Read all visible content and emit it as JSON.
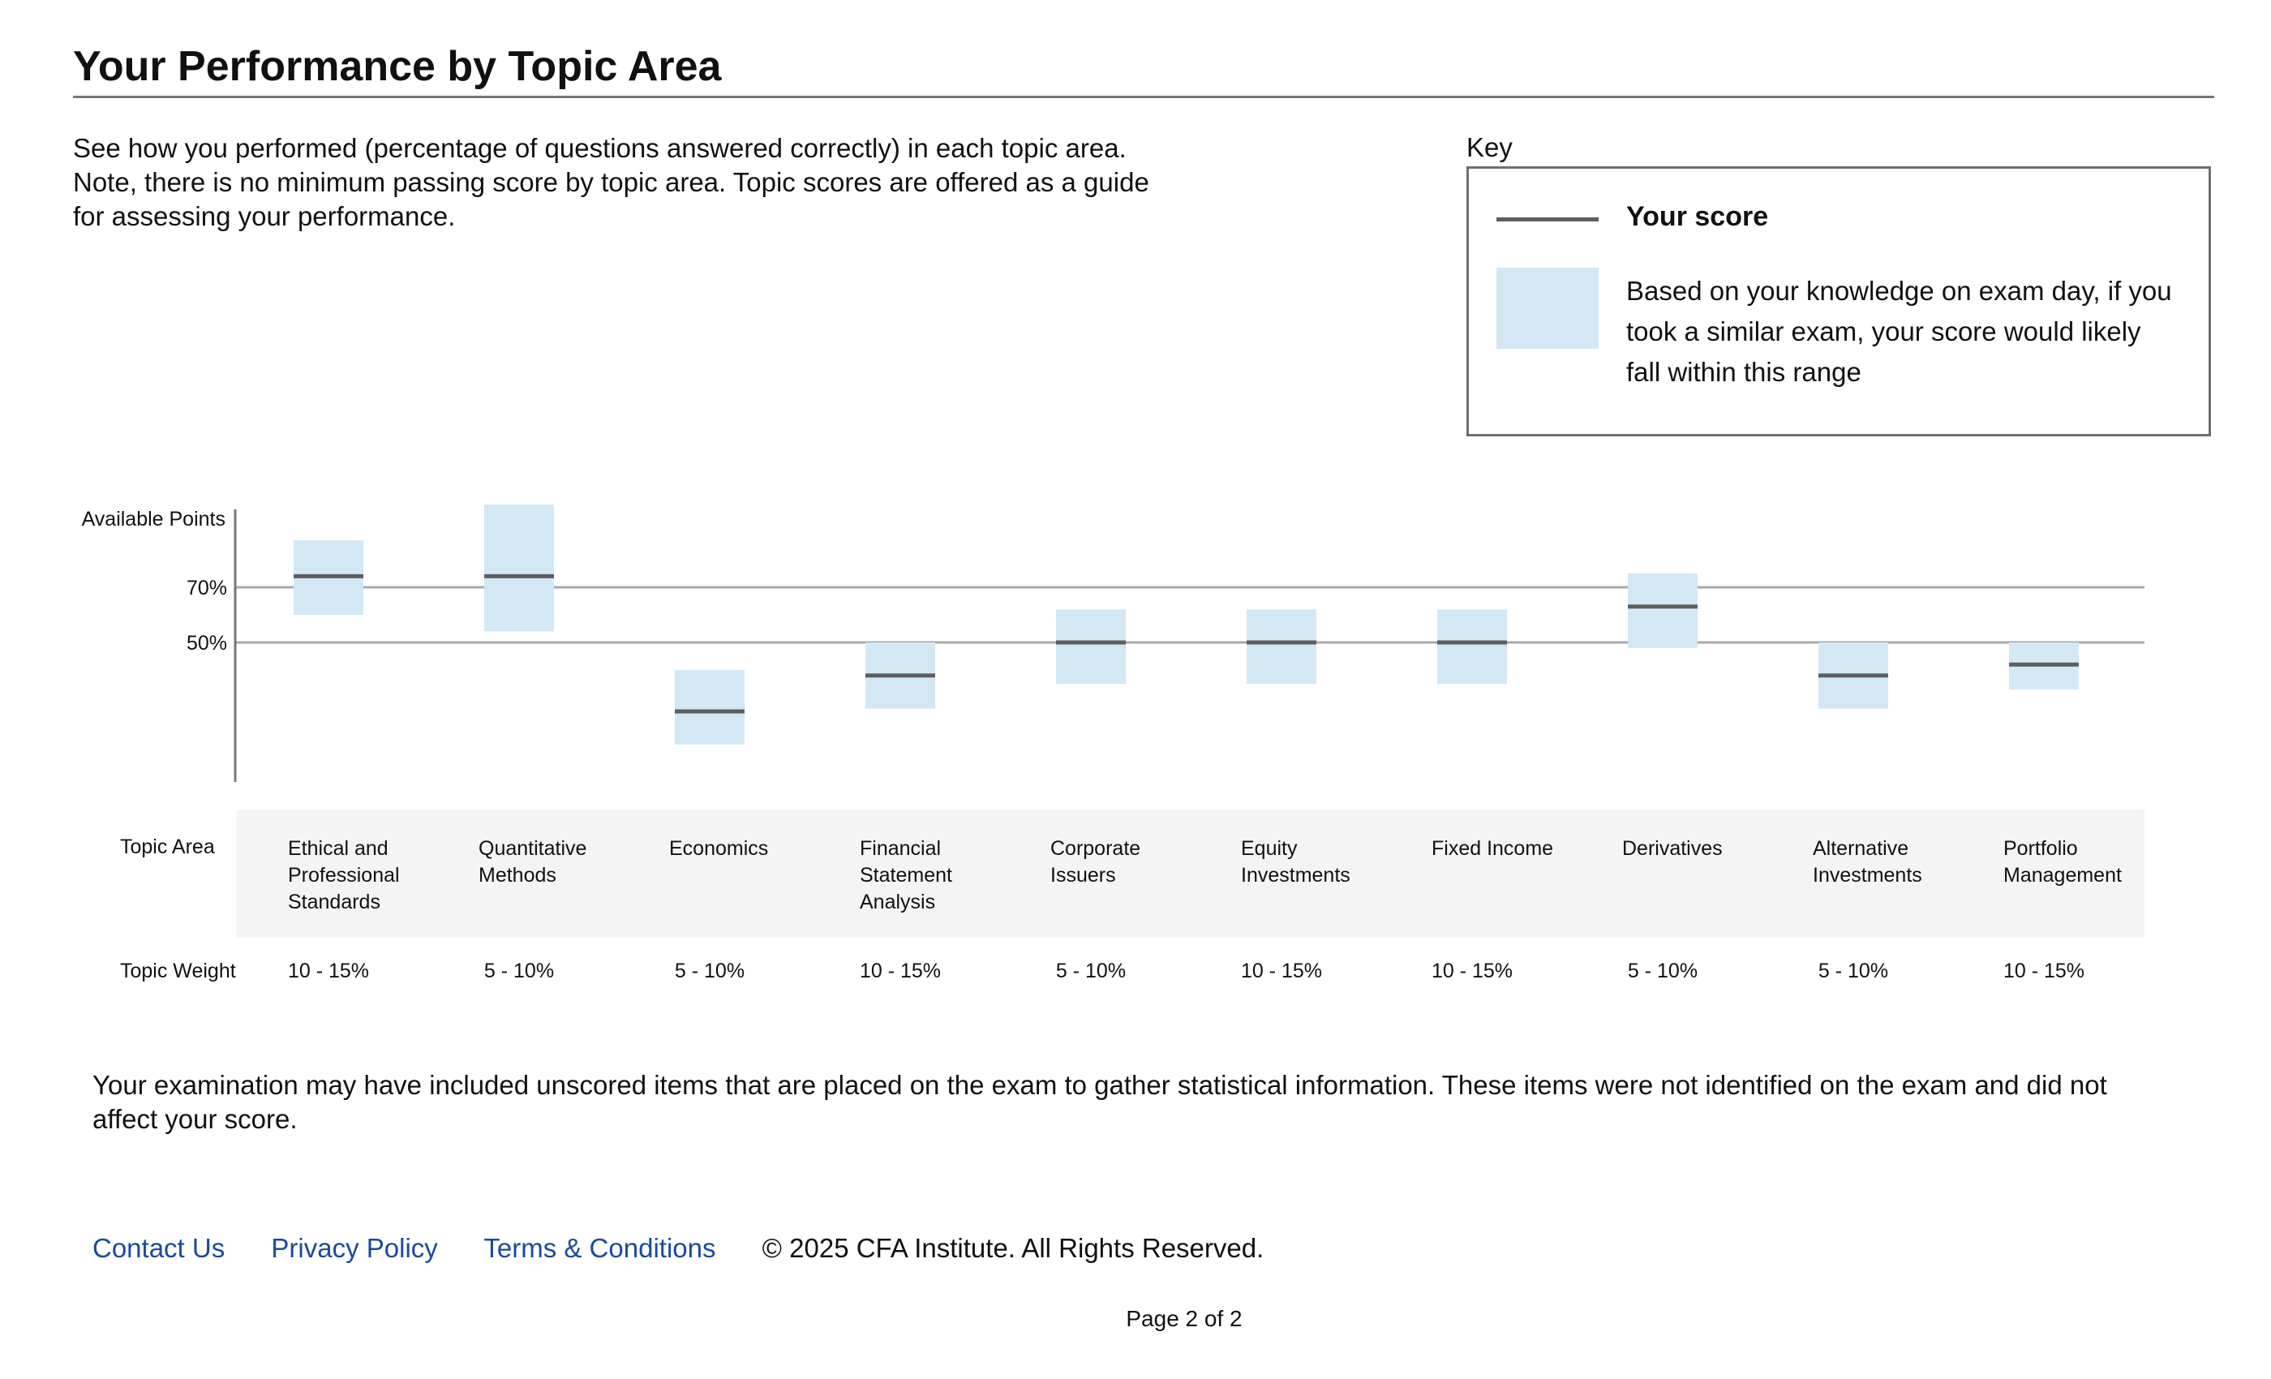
{
  "page": {
    "title": "Your Performance by Topic Area",
    "intro": "See how you performed (percentage of questions answered correctly) in each topic area. Note, there is no minimum passing score by topic area. Topic scores are offered as a guide for assessing your performance."
  },
  "key": {
    "label": "Key",
    "score_label": "Your score",
    "range_label": "Based on your knowledge on exam day, if you took a similar exam, your score would likely fall within this range"
  },
  "colors": {
    "score_line": "#5e5e5e",
    "range_band": "#d2e8f5",
    "gridline": "#a9a9a9",
    "link": "#1b49a0",
    "table_band": "#f4f4f4"
  },
  "table": {
    "topic_area_label": "Topic Area",
    "topic_weight_label": "Topic Weight"
  },
  "chart_data": {
    "type": "range",
    "ylabel": "Available Points",
    "reference_lines": [
      {
        "value": 70,
        "label": "70%"
      },
      {
        "value": 50,
        "label": "50%"
      }
    ],
    "ylim": [
      0,
      100
    ],
    "grid": false,
    "categories": [
      "Ethical and Professional Standards",
      "Quantitative Methods",
      "Economics",
      "Financial Statement Analysis",
      "Corporate Issuers",
      "Equity Investments",
      "Fixed Income",
      "Derivatives",
      "Alternative Investments",
      "Portfolio Management"
    ],
    "topic_lines": [
      [
        "Ethical and",
        "Professional",
        "Standards"
      ],
      [
        "Quantitative",
        "Methods"
      ],
      [
        "Economics"
      ],
      [
        "Financial",
        "Statement",
        "Analysis"
      ],
      [
        "Corporate",
        "Issuers"
      ],
      [
        "Equity",
        "Investments"
      ],
      [
        "Fixed Income"
      ],
      [
        "Derivatives"
      ],
      [
        "Alternative",
        "Investments"
      ],
      [
        "Portfolio",
        "Management"
      ]
    ],
    "weights": [
      "10 - 15%",
      "5 - 10%",
      "5 - 10%",
      "10 - 15%",
      "5 - 10%",
      "10 - 15%",
      "10 - 15%",
      "5 - 10%",
      "5 - 10%",
      "10 - 15%"
    ],
    "series": [
      {
        "name": "Your score",
        "values": [
          74,
          74,
          25,
          38,
          50,
          50,
          50,
          63,
          38,
          42
        ]
      },
      {
        "name": "Range",
        "low": [
          60,
          54,
          13,
          26,
          35,
          35,
          35,
          48,
          26,
          33
        ],
        "high": [
          87,
          100,
          40,
          50,
          62,
          62,
          62,
          75,
          50,
          50
        ]
      }
    ]
  },
  "disclaimer": "Your examination may have included unscored items that are placed on the exam to gather statistical information. These items were not identified on the exam and did not affect your score.",
  "footer": {
    "links": [
      "Contact Us",
      "Privacy Policy",
      "Terms & Conditions"
    ],
    "copyright": "© 2025 CFA Institute. All Rights Reserved.",
    "page_number": "Page 2 of 2"
  }
}
